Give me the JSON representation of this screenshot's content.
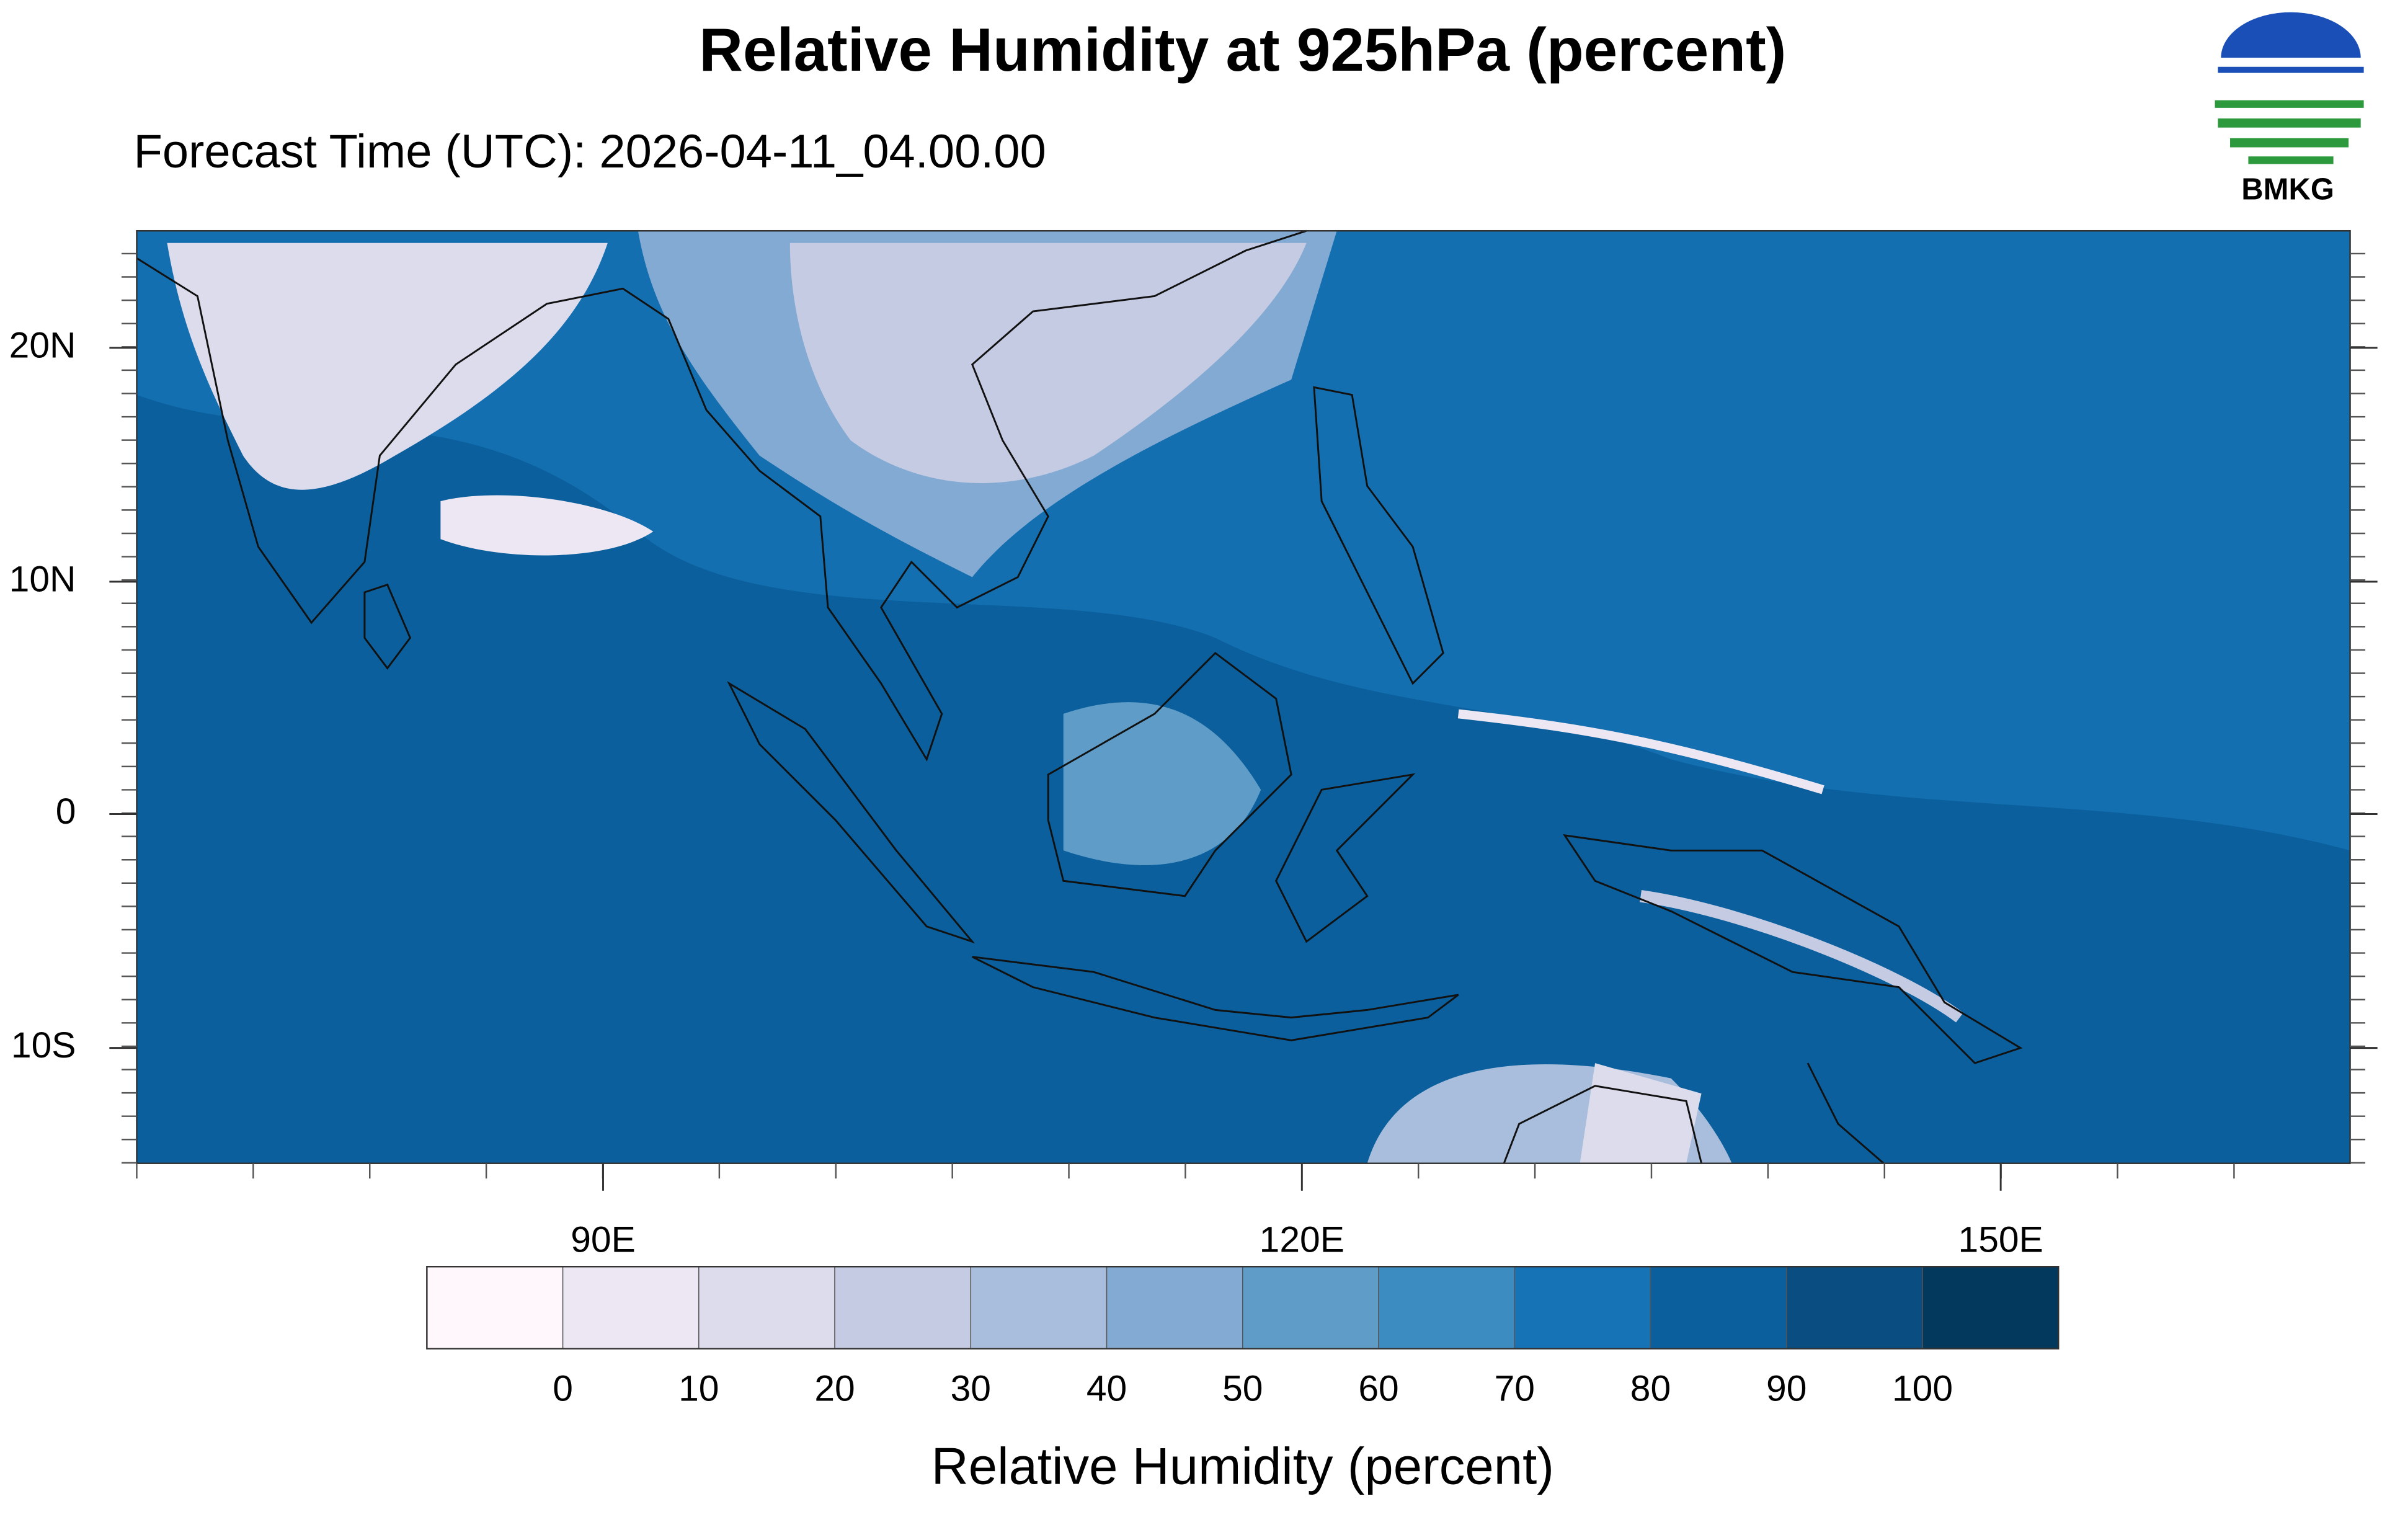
{
  "header": {
    "title": "Relative Humidity at 925hPa (percent)",
    "subtitle": "Forecast Time (UTC): 2026-04-11_04.00.00",
    "logo_text": "BMKG"
  },
  "map": {
    "lat_labels": [
      "20N",
      "10N",
      "0",
      "10S"
    ],
    "lon_labels": [
      "90E",
      "120E",
      "150E"
    ]
  },
  "colorbar": {
    "levels": [
      0,
      10,
      20,
      30,
      40,
      50,
      60,
      70,
      80,
      90,
      100
    ],
    "colors": [
      "#fff7fb",
      "#ece7f2",
      "#dcdcec",
      "#c5cbe3",
      "#a9bedc",
      "#83aad2",
      "#5f9dc8",
      "#3d8cc1",
      "#1673b5",
      "#0a5f9c",
      "#0a4d80",
      "#04395e"
    ],
    "label": "Relative Humidity (percent)"
  }
}
